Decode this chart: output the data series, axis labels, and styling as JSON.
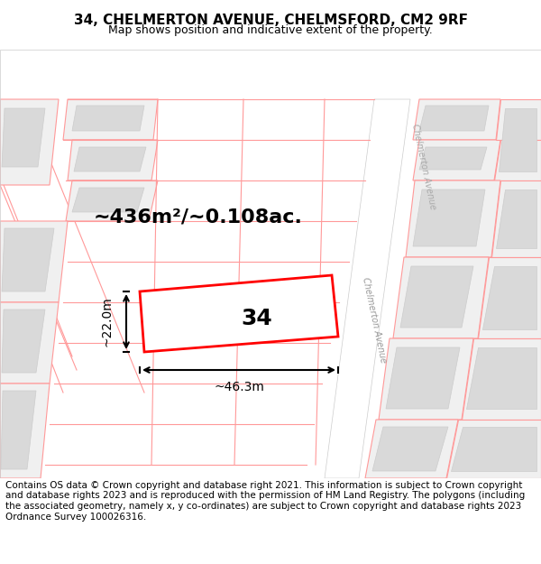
{
  "title": "34, CHELMERTON AVENUE, CHELMSFORD, CM2 9RF",
  "subtitle": "Map shows position and indicative extent of the property.",
  "title_fontsize": 11,
  "subtitle_fontsize": 9,
  "footer_text": "Contains OS data © Crown copyright and database right 2021. This information is subject to Crown copyright and database rights 2023 and is reproduced with the permission of HM Land Registry. The polygons (including the associated geometry, namely x, y co-ordinates) are subject to Crown copyright and database rights 2023 Ordnance Survey 100026316.",
  "footer_fontsize": 7.5,
  "map_bg": "#f8f8f8",
  "footer_bg": "#ffffff",
  "plot_color_fill": "#ffffff",
  "plot_color_border": "#ff0000",
  "road_color": "#ffffff",
  "building_color": "#d9d9d9",
  "cadastral_line_color": "#ff9999",
  "area_text": "~436m²/~0.108ac.",
  "number_text": "34",
  "width_text": "~46.3m",
  "height_text": "~22.0m",
  "road_label": "Chelmerton Avenue",
  "map_xlim": [
    0,
    1
  ],
  "map_ylim": [
    0,
    1
  ]
}
